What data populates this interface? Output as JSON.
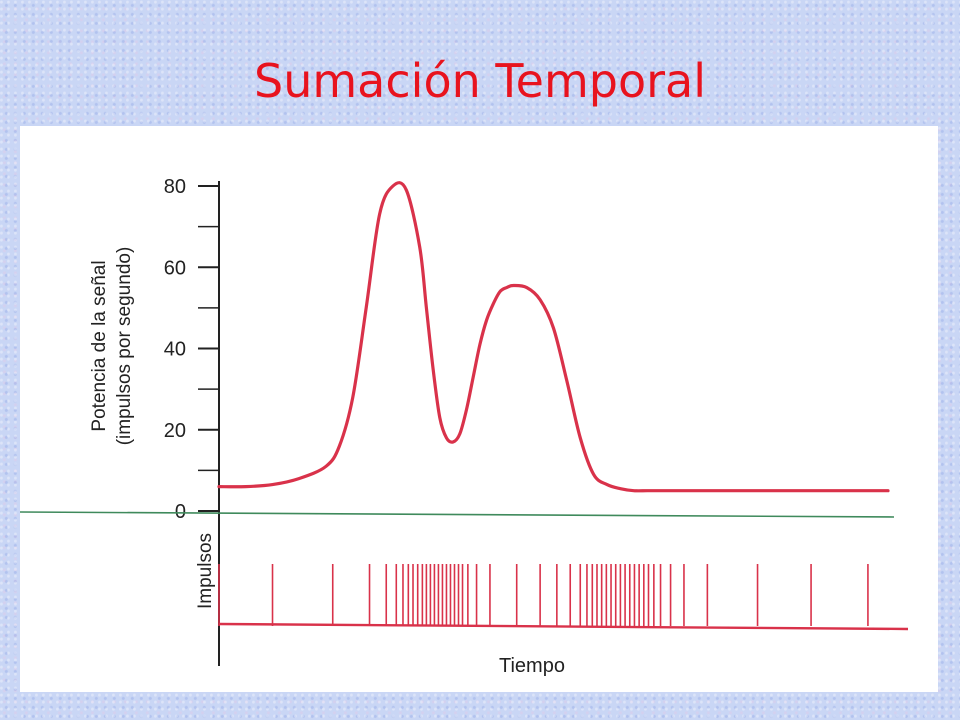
{
  "slide": {
    "title": "Sumación Temporal"
  },
  "colors": {
    "title": "#e8131e",
    "curve": "#d9324a",
    "axis": "#222222",
    "baseline": "#3f8a5c"
  },
  "chart_data": {
    "type": "line",
    "ylabel_line1": "Potencia de la señal",
    "ylabel_line2": "(impulsos por segundo)",
    "xlabel": "Tiempo",
    "impulse_label": "Impulsos",
    "yticks": [
      "0",
      "20",
      "40",
      "60",
      "80"
    ],
    "ylim": [
      0,
      80
    ],
    "xlim": [
      0,
      100
    ],
    "grid": false,
    "series": [
      {
        "x": [
          0,
          4,
          8,
          12,
          16,
          18,
          20,
          22,
          24,
          26,
          28,
          30,
          31,
          32,
          33,
          34,
          35,
          36,
          37,
          38,
          39,
          40,
          41,
          42,
          43,
          44,
          46,
          48,
          50,
          52,
          54,
          56,
          58,
          60,
          62,
          64,
          66,
          68,
          70,
          74,
          80,
          90,
          100
        ],
        "y": [
          6,
          6,
          6.5,
          8,
          11,
          16,
          28,
          50,
          73,
          80,
          79,
          65,
          50,
          35,
          23,
          18,
          17,
          19,
          25,
          33,
          41,
          47,
          51,
          54,
          55,
          55.5,
          55,
          52,
          45,
          32,
          18,
          9,
          6.5,
          5.5,
          5,
          5,
          5,
          5,
          5,
          5,
          5,
          5,
          5
        ]
      }
    ],
    "impulses_x": [
      0,
      8,
      17,
      22.5,
      25,
      26.5,
      27.5,
      28.3,
      29,
      29.7,
      30.4,
      31,
      31.6,
      32.2,
      32.8,
      33.4,
      34,
      34.6,
      35.2,
      35.8,
      36.4,
      37.2,
      38.5,
      40.5,
      44.5,
      48,
      50.5,
      52.5,
      54,
      55,
      55.8,
      56.5,
      57.2,
      57.9,
      58.6,
      59.3,
      60,
      60.7,
      61.4,
      62.1,
      62.8,
      63.5,
      64.2,
      65,
      66,
      67.5,
      69.5,
      73,
      80.5,
      88.5,
      97
    ]
  }
}
